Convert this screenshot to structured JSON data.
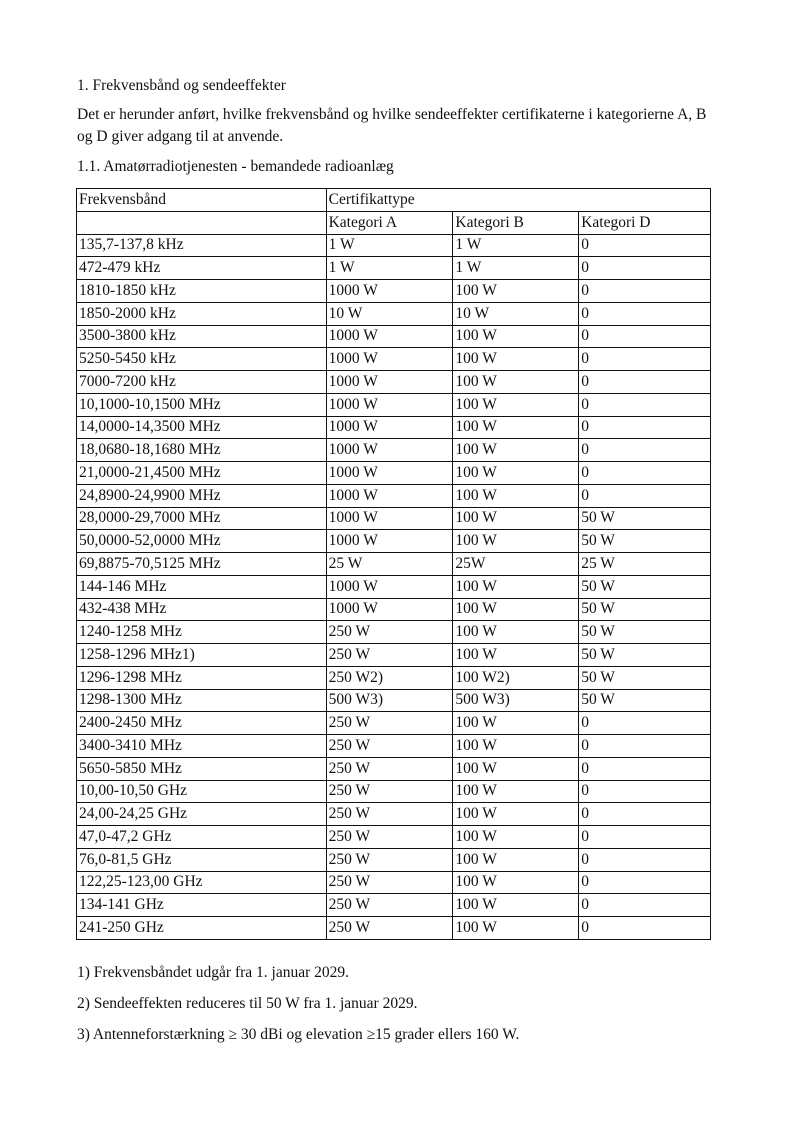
{
  "heading": "1. Frekvensbånd og sendeeffekter",
  "intro": "Det er herunder anført, hvilke frekvensbånd og hvilke sendeeffekter certifikaterne i kategorierne A, B og D giver adgang til at anvende.",
  "subheading": "1.1. Amatørradiotjenesten - bemandede radioanlæg",
  "table": {
    "col_band": "Frekvensbånd",
    "col_group": "Certifikattype",
    "categories": [
      "Kategori A",
      "Kategori B",
      "Kategori D"
    ],
    "rows": [
      [
        "135,7-137,8 kHz",
        "1 W",
        "1 W",
        "0"
      ],
      [
        "472-479 kHz",
        "1 W",
        "1 W",
        "0"
      ],
      [
        "1810-1850 kHz",
        "1000 W",
        "100 W",
        "0"
      ],
      [
        "1850-2000 kHz",
        "10 W",
        "10 W",
        "0"
      ],
      [
        "3500-3800 kHz",
        "1000 W",
        "100 W",
        "0"
      ],
      [
        "5250-5450 kHz",
        "1000 W",
        "100 W",
        "0"
      ],
      [
        "7000-7200 kHz",
        "1000 W",
        "100 W",
        "0"
      ],
      [
        "10,1000-10,1500 MHz",
        "1000 W",
        "100 W",
        "0"
      ],
      [
        "14,0000-14,3500 MHz",
        "1000 W",
        "100 W",
        "0"
      ],
      [
        "18,0680-18,1680 MHz",
        "1000 W",
        "100 W",
        "0"
      ],
      [
        "21,0000-21,4500 MHz",
        "1000 W",
        "100 W",
        "0"
      ],
      [
        "24,8900-24,9900 MHz",
        "1000 W",
        "100 W",
        "0"
      ],
      [
        "28,0000-29,7000 MHz",
        "1000 W",
        "100 W",
        "50 W"
      ],
      [
        "50,0000-52,0000 MHz",
        "1000 W",
        "100 W",
        "50 W"
      ],
      [
        "69,8875-70,5125 MHz",
        "25 W",
        "25W",
        "25 W"
      ],
      [
        "144-146 MHz",
        "1000 W",
        "100 W",
        "50 W"
      ],
      [
        "432-438 MHz",
        "1000 W",
        "100 W",
        "50 W"
      ],
      [
        "1240-1258 MHz",
        "250 W",
        "100 W",
        "50 W"
      ],
      [
        "1258-1296 MHz1)",
        "250 W",
        "100 W",
        "50 W"
      ],
      [
        "1296-1298 MHz",
        "250 W2)",
        "100 W2)",
        "50 W"
      ],
      [
        "1298-1300 MHz",
        "500 W3)",
        "500 W3)",
        "50 W"
      ],
      [
        "2400-2450 MHz",
        "250 W",
        "100 W",
        "0"
      ],
      [
        "3400-3410 MHz",
        "250 W",
        "100 W",
        "0"
      ],
      [
        "5650-5850 MHz",
        "250 W",
        "100 W",
        "0"
      ],
      [
        "10,00-10,50 GHz",
        "250 W",
        "100 W",
        "0"
      ],
      [
        "24,00-24,25 GHz",
        "250 W",
        "100 W",
        "0"
      ],
      [
        "47,0-47,2 GHz",
        "250 W",
        "100 W",
        "0"
      ],
      [
        "76,0-81,5 GHz",
        "250 W",
        "100 W",
        "0"
      ],
      [
        "122,25-123,00 GHz",
        "250 W",
        "100 W",
        "0"
      ],
      [
        "134-141 GHz",
        "250 W",
        "100 W",
        "0"
      ],
      [
        "241-250 GHz",
        "250 W",
        "100 W",
        "0"
      ]
    ]
  },
  "footnotes": [
    "1) Frekvensbåndet udgår fra 1. januar 2029.",
    "2) Sendeeffekten reduceres til 50 W fra 1. januar 2029.",
    "3) Antenneforstærkning ≥ 30 dBi og elevation ≥15 grader ellers 160 W."
  ]
}
